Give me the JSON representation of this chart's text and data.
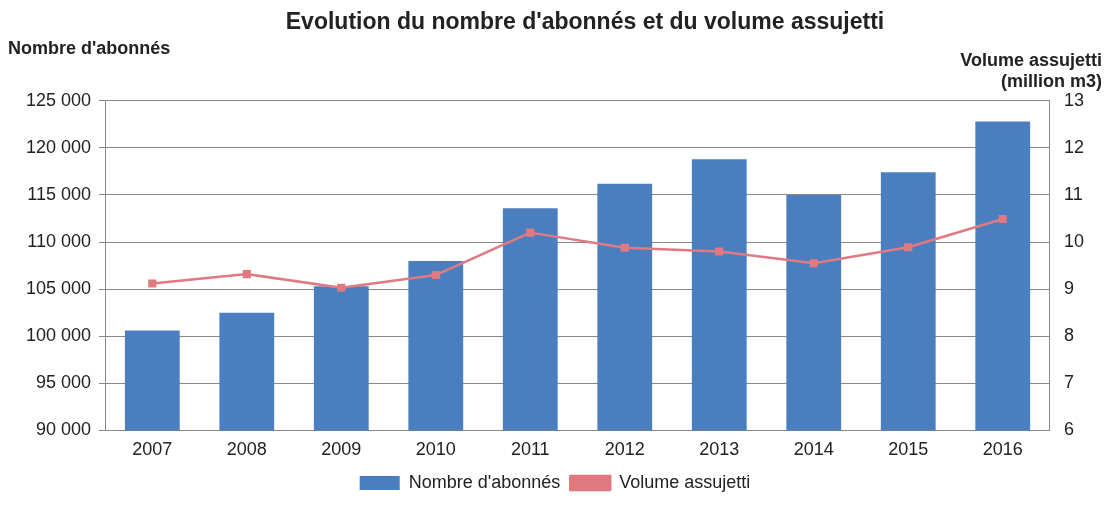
{
  "chart_data": {
    "type": "bar",
    "title": "Evolution du nombre d'abonnés et du volume assujetti",
    "ylabel": "Nombre d'abonnés",
    "y2label": "Volume assujetti (million m3)",
    "categories": [
      "2007",
      "2008",
      "2009",
      "2010",
      "2011",
      "2012",
      "2013",
      "2014",
      "2015",
      "2016"
    ],
    "series": [
      {
        "name": "Nombre d'abonnés",
        "color": "#4a7ebf",
        "values": [
          100600,
          102500,
          105300,
          108000,
          113600,
          116200,
          118800,
          115000,
          117400,
          122800
        ]
      },
      {
        "name": "Volume assujetti",
        "type": "line",
        "axis": "y2",
        "color": "#e07a80",
        "marker": "square",
        "values": [
          9.12,
          9.32,
          9.03,
          9.3,
          10.2,
          9.88,
          9.8,
          9.55,
          9.89,
          10.49
        ]
      }
    ],
    "ylim": [
      90000,
      125000
    ],
    "yticks": [
      {
        "value": 90000,
        "label": "90 000"
      },
      {
        "value": 95000,
        "label": "95 000"
      },
      {
        "value": 100000,
        "label": "100 000"
      },
      {
        "value": 105000,
        "label": "105 000"
      },
      {
        "value": 110000,
        "label": "110 000"
      },
      {
        "value": 115000,
        "label": "115 000"
      },
      {
        "value": 120000,
        "label": "120 000"
      },
      {
        "value": 125000,
        "label": "125 000"
      }
    ],
    "y2lim": [
      6,
      13
    ],
    "y2ticks": [
      6,
      7,
      8,
      9,
      10,
      11,
      12,
      13
    ],
    "grid": "y",
    "legend": "bottom"
  }
}
